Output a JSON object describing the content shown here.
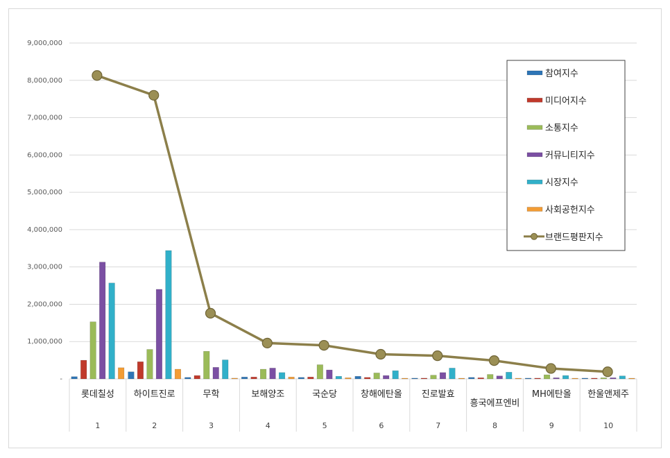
{
  "chart_data": {
    "type": "bar",
    "title": "",
    "xlabel": "",
    "ylabel": "",
    "ylim": [
      0,
      9000000
    ],
    "yticks": [
      "-",
      "1,000,000",
      "2,000,000",
      "3,000,000",
      "4,000,000",
      "5,000,000",
      "6,000,000",
      "7,000,000",
      "8,000,000",
      "9,000,000"
    ],
    "categories": [
      "롯데칠성",
      "하이트진로",
      "무학",
      "보해양조",
      "국순당",
      "창해에탄올",
      "진로발효",
      "흥국에프엔비",
      "MH에탄올",
      "한울앤제주"
    ],
    "ranks": [
      "1",
      "2",
      "3",
      "4",
      "5",
      "6",
      "7",
      "8",
      "9",
      "10"
    ],
    "grid": true,
    "legend_position": "right",
    "series": [
      {
        "name": "참여지수",
        "color": "#2e75b6",
        "values": [
          60000,
          190000,
          40000,
          50000,
          40000,
          70000,
          20000,
          40000,
          20000,
          20000
        ]
      },
      {
        "name": "미디어지수",
        "color": "#c0392b",
        "values": [
          500000,
          460000,
          90000,
          50000,
          50000,
          40000,
          20000,
          30000,
          20000,
          20000
        ]
      },
      {
        "name": "소통지수",
        "color": "#9bbb59",
        "values": [
          1530000,
          790000,
          740000,
          260000,
          380000,
          160000,
          100000,
          120000,
          110000,
          30000
        ]
      },
      {
        "name": "커뮤니티지수",
        "color": "#7b4fa3",
        "values": [
          3130000,
          2400000,
          310000,
          290000,
          240000,
          90000,
          170000,
          80000,
          30000,
          30000
        ]
      },
      {
        "name": "시장지수",
        "color": "#31b0c9",
        "values": [
          2570000,
          3440000,
          510000,
          170000,
          70000,
          220000,
          290000,
          180000,
          90000,
          80000
        ]
      },
      {
        "name": "사회공헌지수",
        "color": "#f39c34",
        "values": [
          300000,
          260000,
          20000,
          50000,
          30000,
          10000,
          10000,
          10000,
          10000,
          10000
        ]
      },
      {
        "name": "브랜드평판지수",
        "color": "#8c7f4a",
        "type": "line",
        "values": [
          8130000,
          7600000,
          1760000,
          960000,
          900000,
          660000,
          620000,
          490000,
          280000,
          190000
        ]
      }
    ]
  }
}
